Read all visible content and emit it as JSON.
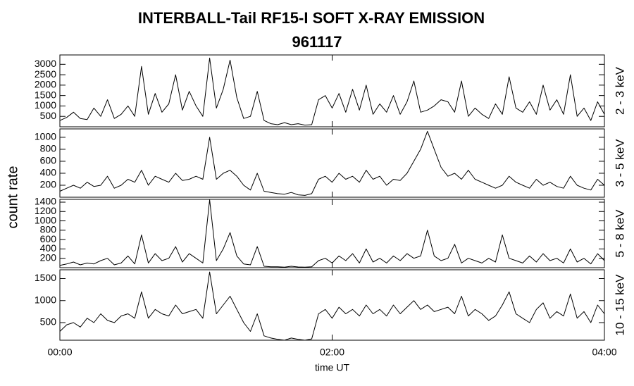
{
  "title": "INTERBALL-Tail RF15-I SOFT X-RAY EMISSION",
  "subtitle": "961117",
  "ylabel": "count rate",
  "chart_data": [
    {
      "type": "line",
      "name": "2 - 3 keV",
      "color": "#000000",
      "ylim": [
        0,
        3450
      ],
      "yticks": [
        500,
        1000,
        1500,
        2000,
        2500,
        3000
      ],
      "values": [
        300,
        450,
        700,
        400,
        350,
        900,
        500,
        1300,
        400,
        600,
        1000,
        500,
        2900,
        600,
        1600,
        700,
        1100,
        2500,
        800,
        1700,
        1000,
        500,
        3300,
        900,
        1800,
        3200,
        1400,
        400,
        500,
        1700,
        300,
        150,
        100,
        200,
        100,
        150,
        80,
        100,
        1300,
        1500,
        900,
        1600,
        700,
        1800,
        800,
        2000,
        600,
        1100,
        700,
        1500,
        600,
        1200,
        2200,
        700,
        800,
        1000,
        1300,
        1200,
        700,
        2200,
        500,
        900,
        600,
        400,
        1100,
        600,
        2400,
        900,
        700,
        1200,
        600,
        2000,
        800,
        1300,
        600,
        2500,
        500,
        900,
        300,
        1200,
        600
      ]
    },
    {
      "type": "line",
      "name": "3 - 5 keV",
      "color": "#000000",
      "ylim": [
        0,
        1140
      ],
      "yticks": [
        200,
        400,
        600,
        800,
        1000
      ],
      "values": [
        100,
        150,
        200,
        150,
        250,
        180,
        200,
        350,
        150,
        200,
        300,
        250,
        450,
        200,
        350,
        300,
        250,
        400,
        280,
        300,
        350,
        300,
        1000,
        300,
        400,
        450,
        350,
        200,
        120,
        400,
        100,
        80,
        60,
        50,
        80,
        40,
        30,
        60,
        300,
        350,
        250,
        400,
        300,
        350,
        250,
        450,
        300,
        350,
        200,
        300,
        280,
        400,
        600,
        800,
        1100,
        800,
        500,
        350,
        400,
        300,
        450,
        300,
        250,
        200,
        150,
        200,
        350,
        250,
        200,
        150,
        300,
        200,
        250,
        180,
        150,
        350,
        200,
        150,
        120,
        300,
        200
      ]
    },
    {
      "type": "line",
      "name": "5 - 8 keV",
      "color": "#000000",
      "ylim": [
        0,
        1460
      ],
      "yticks": [
        200,
        400,
        600,
        800,
        1000,
        1200,
        1400
      ],
      "values": [
        50,
        80,
        120,
        60,
        100,
        80,
        150,
        200,
        60,
        100,
        250,
        80,
        700,
        100,
        300,
        150,
        200,
        450,
        120,
        300,
        200,
        100,
        1450,
        150,
        400,
        750,
        250,
        80,
        60,
        450,
        30,
        20,
        20,
        10,
        30,
        15,
        10,
        20,
        150,
        200,
        100,
        250,
        150,
        300,
        100,
        400,
        120,
        200,
        100,
        250,
        150,
        300,
        200,
        250,
        800,
        250,
        150,
        200,
        500,
        100,
        200,
        150,
        100,
        200,
        120,
        700,
        200,
        150,
        100,
        250,
        120,
        300,
        150,
        200,
        100,
        400,
        120,
        200,
        80,
        300,
        150
      ]
    },
    {
      "type": "line",
      "name": "10 - 15 keV",
      "color": "#000000",
      "ylim": [
        100,
        1700
      ],
      "yticks": [
        500,
        1000,
        1500
      ],
      "values": [
        300,
        450,
        500,
        400,
        600,
        500,
        700,
        550,
        500,
        650,
        700,
        600,
        1200,
        600,
        800,
        700,
        650,
        900,
        700,
        750,
        800,
        600,
        1650,
        700,
        900,
        1100,
        800,
        500,
        300,
        700,
        200,
        150,
        120,
        100,
        150,
        120,
        100,
        130,
        700,
        800,
        600,
        850,
        700,
        800,
        650,
        900,
        700,
        800,
        650,
        900,
        700,
        850,
        1000,
        800,
        900,
        750,
        800,
        850,
        700,
        1100,
        650,
        800,
        700,
        550,
        650,
        900,
        1200,
        700,
        600,
        500,
        800,
        950,
        600,
        750,
        650,
        1150,
        600,
        750,
        500,
        900,
        700
      ],
      "x": [
        0,
        0.05,
        0.1,
        0.15,
        0.2,
        0.25,
        0.3,
        0.35,
        0.4,
        0.45,
        0.5,
        0.55,
        0.6,
        0.65,
        0.7,
        0.75,
        0.8,
        0.85,
        0.9,
        0.95,
        1,
        1.05,
        1.1,
        1.15,
        1.2,
        1.25,
        1.3,
        1.35,
        1.4,
        1.45,
        1.5,
        1.55,
        1.6,
        1.65,
        1.7,
        1.75,
        1.8,
        1.85,
        1.9,
        1.95,
        2,
        2.05,
        2.1,
        2.15,
        2.2,
        2.25,
        2.3,
        2.35,
        2.4,
        2.45,
        2.5,
        2.55,
        2.6,
        2.65,
        2.7,
        2.75,
        2.8,
        2.85,
        2.9,
        2.95,
        3,
        3.05,
        3.1,
        3.15,
        3.2,
        3.25,
        3.3,
        3.35,
        3.4,
        3.45,
        3.5,
        3.55,
        3.6,
        3.65,
        3.7,
        3.75,
        3.8,
        3.85,
        3.9,
        3.95,
        4
      ],
      "xlim": [
        0,
        4
      ],
      "xticks": [
        {
          "value": 0,
          "label": "00:00"
        },
        {
          "value": 2,
          "label": "02:00"
        },
        {
          "value": 4,
          "label": "04:00"
        }
      ],
      "xlabel": "time UT"
    }
  ]
}
